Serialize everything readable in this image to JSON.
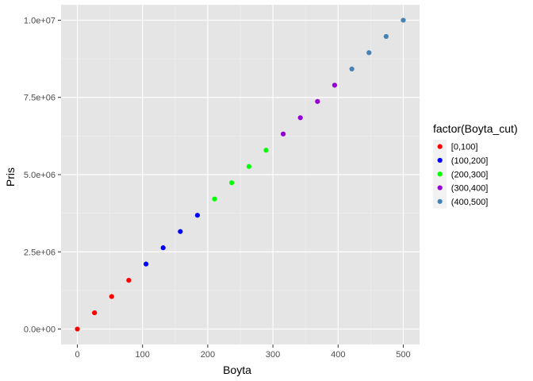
{
  "chart_data": {
    "type": "scatter",
    "xlabel": "Boyta",
    "ylabel": "Pris",
    "xlim": [
      -25,
      525
    ],
    "ylim": [
      -500000,
      10500000
    ],
    "x_ticks": [
      0,
      100,
      200,
      300,
      400,
      500
    ],
    "x_tick_labels": [
      "0",
      "100",
      "200",
      "300",
      "400",
      "500"
    ],
    "y_ticks": [
      0,
      2500000,
      5000000,
      7500000,
      10000000
    ],
    "y_tick_labels": [
      "0.0e+00",
      "2.5e+06",
      "5.0e+06",
      "7.5e+06",
      "1.0e+07"
    ],
    "grid": true,
    "background": "#e5e5e5",
    "legend": {
      "title": "factor(Boyta_cut)",
      "position": "right",
      "entries": [
        {
          "label": "[0,100]",
          "color": "#ff0000"
        },
        {
          "label": "(100,200]",
          "color": "#0000ff"
        },
        {
          "label": "(200,300]",
          "color": "#00ff00"
        },
        {
          "label": "(300,400]",
          "color": "#9400d3"
        },
        {
          "label": "(400,500]",
          "color": "#4682b4"
        }
      ]
    },
    "series": [
      {
        "name": "[0,100]",
        "color": "#ff0000",
        "x": [
          0,
          26.3,
          52.6,
          78.9
        ],
        "y": [
          0,
          526316,
          1052632,
          1578947
        ]
      },
      {
        "name": "(100,200]",
        "color": "#0000ff",
        "x": [
          105.3,
          131.6,
          157.9,
          184.2
        ],
        "y": [
          2105263,
          2631579,
          3157895,
          3684211
        ]
      },
      {
        "name": "(200,300]",
        "color": "#00ff00",
        "x": [
          210.5,
          236.8,
          263.2,
          289.5
        ],
        "y": [
          4210526,
          4736842,
          5263158,
          5789474
        ]
      },
      {
        "name": "(300,400]",
        "color": "#9400d3",
        "x": [
          315.8,
          342.1,
          368.4,
          394.7
        ],
        "y": [
          6315789,
          6842105,
          7368421,
          7894737
        ]
      },
      {
        "name": "(400,500]",
        "color": "#4682b4",
        "x": [
          421.1,
          447.4,
          473.7,
          500
        ],
        "y": [
          8421053,
          8947368,
          9473684,
          10000000
        ]
      }
    ]
  }
}
